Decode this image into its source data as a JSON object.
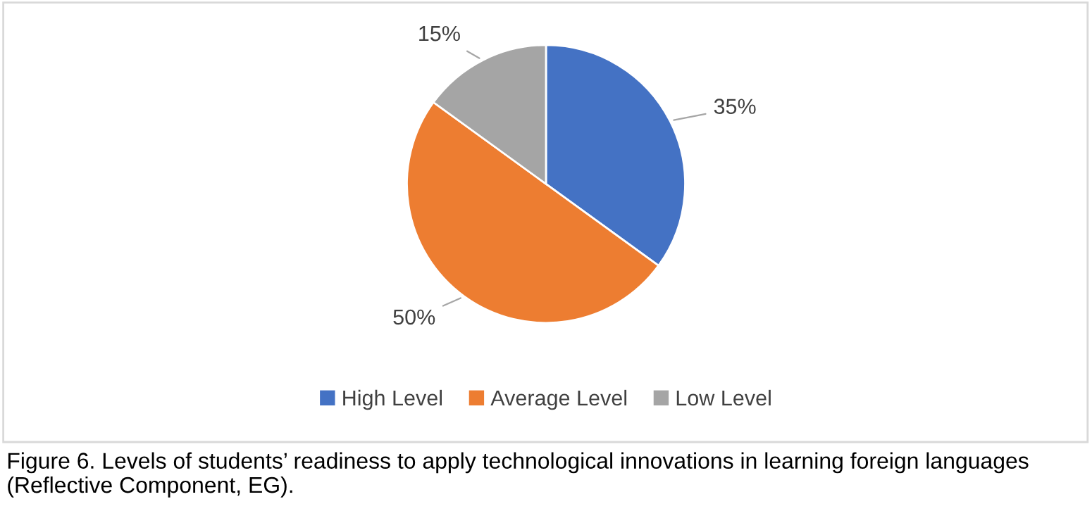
{
  "chart_data": {
    "type": "pie",
    "categories": [
      "High Level",
      "Average Level",
      "Low Level"
    ],
    "values": [
      35,
      50,
      15
    ],
    "colors": [
      "#4472c4",
      "#ed7d31",
      "#a5a5a5"
    ],
    "value_labels": [
      "35%",
      "50%",
      "15%"
    ],
    "legend": "bottom",
    "annotations": [
      "Figure 6. Levels of students’ readiness to apply technological innovations in learning foreign languages (Reflective Component, EG)."
    ]
  }
}
